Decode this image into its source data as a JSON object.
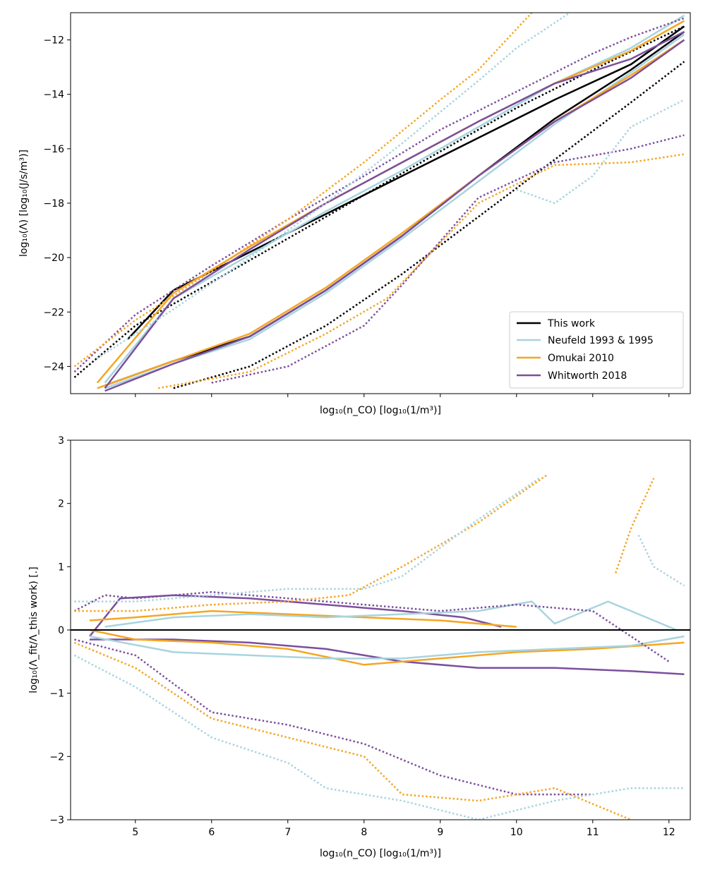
{
  "colors": {
    "this_work": "#000000",
    "neufeld": "#a8d4de",
    "omukai": "#f5a623",
    "whitworth": "#7b4f9d"
  },
  "chart_data": [
    {
      "type": "line",
      "title": "",
      "xlabel": "log₁₀(n_CO) [log₁₀(1/m³)]",
      "ylabel": "log₁₀(Λ) [log₁₀(J/s/m³)]",
      "xlim": [
        4.15,
        12.28
      ],
      "ylim": [
        -25,
        -11
      ],
      "yticks": [
        -24,
        -22,
        -20,
        -18,
        -16,
        -14,
        -12
      ],
      "xticks": [
        5,
        6,
        7,
        8,
        9,
        10,
        11,
        12
      ],
      "xtick_labels_shown": false,
      "legend_position": "lower-right",
      "legend": [
        "This work",
        "Neufeld 1993 & 1995",
        "Omukai 2010",
        "Whitworth 2018"
      ],
      "series": [
        {
          "name": "This work",
          "style": "solid",
          "x": [
            4.9,
            5.5,
            6.5,
            7.5,
            8.5,
            9.5,
            10.5,
            11.5,
            12.2
          ],
          "y": [
            -23.0,
            -21.2,
            -19.8,
            -18.4,
            -17.0,
            -15.6,
            -14.2,
            -12.9,
            -11.5
          ]
        },
        {
          "name": "This work",
          "style": "solid",
          "x": [
            4.6,
            5.5,
            6.5,
            7.5,
            8.5,
            9.5,
            10.5,
            11.5,
            12.2
          ],
          "y": [
            -24.7,
            -23.8,
            -22.9,
            -21.2,
            -19.2,
            -17.0,
            -14.9,
            -13.1,
            -11.7
          ]
        },
        {
          "name": "This work",
          "style": "dotted",
          "x": [
            4.2,
            5.0,
            6.0,
            7.0,
            8.0,
            9.0,
            10.0,
            11.0,
            12.2
          ],
          "y": [
            -24.4,
            -22.5,
            -20.9,
            -19.3,
            -17.7,
            -16.1,
            -14.5,
            -13.1,
            -11.5
          ]
        },
        {
          "name": "This work",
          "style": "dotted",
          "x": [
            5.5,
            6.5,
            7.5,
            8.5,
            9.5,
            10.5,
            11.5,
            12.2
          ],
          "y": [
            -24.8,
            -24.0,
            -22.5,
            -20.6,
            -18.5,
            -16.4,
            -14.3,
            -12.8
          ]
        },
        {
          "name": "Neufeld 1993 & 1995",
          "style": "solid",
          "x": [
            4.6,
            5.5,
            6.5,
            7.5,
            8.5,
            9.5,
            10.5,
            11.5,
            12.2
          ],
          "y": [
            -24.6,
            -21.5,
            -19.9,
            -18.3,
            -16.8,
            -15.2,
            -13.6,
            -12.3,
            -11.1
          ]
        },
        {
          "name": "Neufeld 1993 & 1995",
          "style": "solid",
          "x": [
            4.6,
            5.5,
            6.5,
            7.5,
            8.5,
            9.5,
            10.5,
            11.5,
            12.2
          ],
          "y": [
            -24.8,
            -23.9,
            -23.0,
            -21.3,
            -19.3,
            -17.2,
            -15.1,
            -13.2,
            -11.8
          ]
        },
        {
          "name": "Omukai 2010",
          "style": "solid",
          "x": [
            4.5,
            5.5,
            6.5,
            7.5,
            8.5,
            9.5,
            10.5,
            11.5,
            12.2
          ],
          "y": [
            -24.6,
            -21.3,
            -19.6,
            -18.0,
            -16.5,
            -15.0,
            -13.6,
            -12.4,
            -11.3
          ]
        },
        {
          "name": "Omukai 2010",
          "style": "solid",
          "x": [
            4.5,
            5.5,
            6.5,
            7.5,
            8.5,
            9.5,
            10.5,
            11.5,
            12.2
          ],
          "y": [
            -24.8,
            -23.8,
            -22.8,
            -21.1,
            -19.1,
            -17.0,
            -15.0,
            -13.3,
            -12.0
          ]
        },
        {
          "name": "Whitworth 2018",
          "style": "solid",
          "x": [
            4.6,
            5.5,
            6.5,
            7.5,
            8.5,
            9.5,
            10.5,
            11.5,
            12.2
          ],
          "y": [
            -24.8,
            -21.5,
            -19.7,
            -18.0,
            -16.5,
            -15.0,
            -13.6,
            -12.7,
            -11.7
          ]
        },
        {
          "name": "Whitworth 2018",
          "style": "solid",
          "x": [
            4.6,
            5.5,
            6.5,
            7.5,
            8.5,
            9.5,
            10.5,
            11.5,
            12.2
          ],
          "y": [
            -24.9,
            -23.9,
            -22.9,
            -21.2,
            -19.2,
            -17.0,
            -15.0,
            -13.4,
            -12.0
          ]
        },
        {
          "name": "Whitworth 2018",
          "style": "dotted",
          "x": [
            4.2,
            5.0,
            6.0,
            7.0,
            8.0,
            9.0,
            10.0,
            11.0,
            11.5,
            12.2
          ],
          "y": [
            -24.2,
            -22.1,
            -20.3,
            -18.6,
            -17.0,
            -15.3,
            -13.9,
            -12.5,
            -11.9,
            -11.2
          ]
        },
        {
          "name": "Whitworth 2018",
          "style": "dotted",
          "x": [
            6.0,
            7.0,
            8.0,
            8.5,
            9.5,
            10.5,
            11.5,
            12.2
          ],
          "y": [
            -24.6,
            -24.0,
            -22.5,
            -21.0,
            -17.8,
            -16.5,
            -16.0,
            -15.5
          ]
        },
        {
          "name": "Omukai 2010",
          "style": "dotted",
          "x": [
            4.2,
            5.0,
            6.0,
            7.0,
            8.0,
            9.0,
            9.5,
            10.2
          ],
          "y": [
            -24.0,
            -22.3,
            -20.5,
            -18.6,
            -16.5,
            -14.2,
            -13.1,
            -11.0
          ]
        },
        {
          "name": "Omukai 2010",
          "style": "dotted",
          "x": [
            5.3,
            6.5,
            7.5,
            8.3,
            9.5,
            10.5,
            11.5,
            12.2
          ],
          "y": [
            -24.8,
            -24.2,
            -22.8,
            -21.5,
            -18.0,
            -16.6,
            -16.5,
            -16.2
          ]
        },
        {
          "name": "Neufeld 1993 & 1995",
          "style": "dotted",
          "x": [
            4.5,
            5.5,
            6.5,
            7.5,
            8.5,
            9.5,
            10.0,
            10.7
          ],
          "y": [
            -23.7,
            -21.9,
            -20.0,
            -18.0,
            -15.8,
            -13.5,
            -12.3,
            -11.0
          ]
        },
        {
          "name": "Neufeld 1993 & 1995",
          "style": "dotted",
          "x": [
            10.0,
            10.5,
            11.0,
            11.5,
            12.2
          ],
          "y": [
            -17.5,
            -18.0,
            -17.0,
            -15.2,
            -14.2
          ]
        }
      ]
    },
    {
      "type": "line",
      "title": "",
      "xlabel": "log₁₀(n_CO) [log₁₀(1/m³)]",
      "ylabel": "log₁₀(Λ_fit/Λ_this work) [.]",
      "xlim": [
        4.15,
        12.28
      ],
      "ylim": [
        -3,
        3
      ],
      "yticks": [
        -3,
        -2,
        -1,
        0,
        1,
        2,
        3
      ],
      "xticks": [
        5,
        6,
        7,
        8,
        9,
        10,
        11,
        12
      ],
      "reference_line": 0,
      "series": [
        {
          "name": "Whitworth 2018",
          "style": "solid",
          "x": [
            4.4,
            4.8,
            5.5,
            6.5,
            7.5,
            8.5,
            9.3,
            9.8
          ],
          "y": [
            -0.1,
            0.5,
            0.55,
            0.5,
            0.4,
            0.3,
            0.2,
            0.05
          ]
        },
        {
          "name": "Whitworth 2018",
          "style": "solid",
          "x": [
            4.4,
            5.5,
            6.5,
            7.5,
            8.5,
            9.5,
            10.5,
            11.5,
            12.2
          ],
          "y": [
            -0.15,
            -0.15,
            -0.2,
            -0.3,
            -0.5,
            -0.6,
            -0.6,
            -0.65,
            -0.7
          ]
        },
        {
          "name": "Omukai 2010",
          "style": "solid",
          "x": [
            4.4,
            5.0,
            6.0,
            7.0,
            8.0,
            9.0,
            10.0
          ],
          "y": [
            0.15,
            0.2,
            0.3,
            0.25,
            0.2,
            0.15,
            0.05
          ]
        },
        {
          "name": "Omukai 2010",
          "style": "solid",
          "x": [
            4.4,
            5.0,
            6.0,
            7.0,
            8.0,
            9.0,
            10.0,
            11.0,
            12.2
          ],
          "y": [
            0.0,
            -0.15,
            -0.2,
            -0.3,
            -0.55,
            -0.45,
            -0.35,
            -0.3,
            -0.2
          ]
        },
        {
          "name": "Neufeld 1993 & 1995",
          "style": "solid",
          "x": [
            4.6,
            5.5,
            6.5,
            7.5,
            8.5,
            9.5,
            10.2,
            10.5,
            11.2,
            12.1
          ],
          "y": [
            0.05,
            0.2,
            0.25,
            0.2,
            0.25,
            0.3,
            0.45,
            0.1,
            0.45,
            0.0
          ]
        },
        {
          "name": "Neufeld 1993 & 1995",
          "style": "solid",
          "x": [
            4.4,
            5.5,
            6.5,
            7.5,
            8.5,
            9.5,
            10.5,
            11.5,
            12.2
          ],
          "y": [
            -0.1,
            -0.35,
            -0.4,
            -0.45,
            -0.45,
            -0.35,
            -0.3,
            -0.25,
            -0.1
          ]
        },
        {
          "name": "Whitworth 2018",
          "style": "dotted",
          "x": [
            4.2,
            4.6,
            5.0,
            6.0,
            7.0,
            8.0,
            9.0,
            10.0,
            11.0,
            12.0
          ],
          "y": [
            0.3,
            0.55,
            0.5,
            0.6,
            0.5,
            0.4,
            0.3,
            0.4,
            0.3,
            -0.5
          ]
        },
        {
          "name": "Whitworth 2018",
          "style": "dotted",
          "x": [
            4.2,
            5.0,
            6.0,
            7.0,
            8.0,
            9.0,
            10.0,
            11.0
          ],
          "y": [
            -0.15,
            -0.4,
            -1.3,
            -1.5,
            -1.8,
            -2.3,
            -2.6,
            -2.6
          ]
        },
        {
          "name": "Omukai 2010",
          "style": "dotted",
          "x": [
            4.2,
            5.0,
            6.0,
            7.0,
            7.8,
            8.5,
            9.5,
            10.4
          ],
          "y": [
            0.3,
            0.3,
            0.4,
            0.45,
            0.55,
            1.0,
            1.7,
            2.45
          ]
        },
        {
          "name": "Omukai 2010",
          "style": "dotted",
          "x": [
            4.2,
            5.0,
            6.0,
            7.0,
            8.0,
            8.5,
            9.5,
            10.5,
            11.5
          ],
          "y": [
            -0.2,
            -0.6,
            -1.4,
            -1.7,
            -2.0,
            -2.6,
            -2.7,
            -2.5,
            -3.0
          ]
        },
        {
          "name": "Omukai 2010",
          "style": "dotted",
          "x": [
            11.3,
            11.5,
            11.8
          ],
          "y": [
            0.9,
            1.6,
            2.4
          ]
        },
        {
          "name": "Neufeld 1993 & 1995",
          "style": "dotted",
          "x": [
            4.2,
            5.0,
            6.0,
            7.0,
            8.0,
            8.5,
            9.0,
            9.5,
            10.3
          ],
          "y": [
            0.45,
            0.45,
            0.55,
            0.65,
            0.65,
            0.85,
            1.3,
            1.75,
            2.4
          ]
        },
        {
          "name": "Neufeld 1993 & 1995",
          "style": "dotted",
          "x": [
            4.2,
            5.0,
            6.0,
            7.0,
            7.5,
            8.5,
            9.5,
            10.5,
            11.5,
            12.2
          ],
          "y": [
            -0.4,
            -0.9,
            -1.7,
            -2.1,
            -2.5,
            -2.7,
            -3.0,
            -2.7,
            -2.5,
            -2.5
          ]
        },
        {
          "name": "Neufeld 1993 & 1995",
          "style": "dotted",
          "x": [
            11.6,
            11.8,
            12.2
          ],
          "y": [
            1.5,
            1.0,
            0.7
          ]
        }
      ]
    }
  ]
}
